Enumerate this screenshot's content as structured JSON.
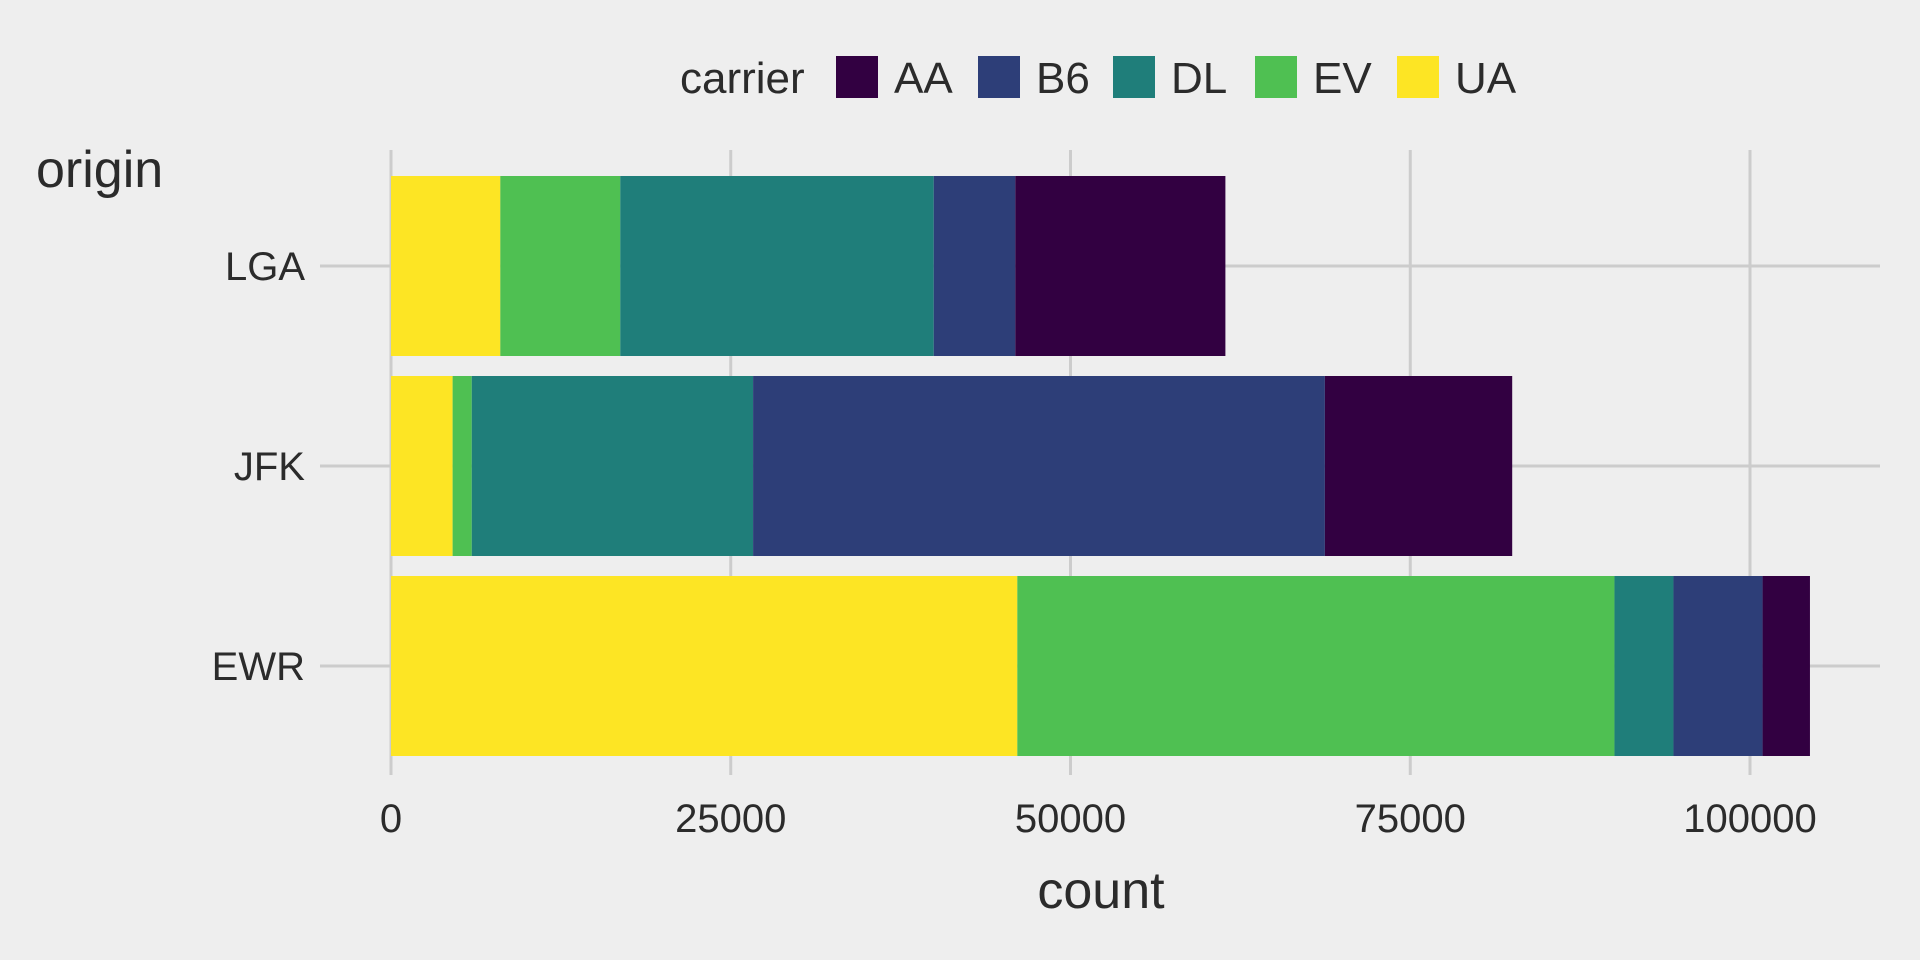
{
  "chart_data": {
    "type": "bar",
    "orientation": "horizontal",
    "stacked": true,
    "xlabel": "count",
    "ylabel": "origin",
    "categories": [
      "EWR",
      "JFK",
      "LGA"
    ],
    "x_ticks": [
      "0",
      "25000",
      "50000",
      "75000",
      "100000"
    ],
    "x_tick_values": [
      0,
      25000,
      50000,
      75000,
      100000
    ],
    "xlim": [
      0,
      109500
    ],
    "grid": true,
    "legend": {
      "title": "carrier",
      "position": "top"
    },
    "stack_order": [
      "UA",
      "EV",
      "DL",
      "B6",
      "AA"
    ],
    "series": [
      {
        "name": "AA",
        "color": "#320041",
        "values": [
          3487,
          13783,
          15459
        ]
      },
      {
        "name": "B6",
        "color": "#2d3e78",
        "values": [
          6557,
          42076,
          6002
        ]
      },
      {
        "name": "DL",
        "color": "#1f7e7a",
        "values": [
          4342,
          20701,
          23067
        ]
      },
      {
        "name": "EV",
        "color": "#4fc052",
        "values": [
          43939,
          1408,
          8826
        ]
      },
      {
        "name": "UA",
        "color": "#fde524",
        "values": [
          46087,
          4534,
          8044
        ]
      }
    ]
  }
}
